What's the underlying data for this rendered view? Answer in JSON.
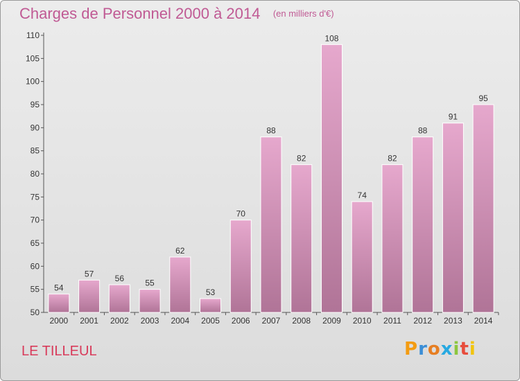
{
  "header": {
    "title": "Charges de Personnel 2000 à 2014",
    "unit": "(en milliers d'€)"
  },
  "footer": {
    "commune": "LE TILLEUL",
    "logo_text": "Proxiti"
  },
  "colors": {
    "bar_top": "#e6a8cd",
    "bar_bottom": "#b07497",
    "title": "#c05a94",
    "commune": "#d83a5a"
  },
  "chart_data": {
    "type": "bar",
    "title": "Charges de Personnel 2000 à 2014",
    "subtitle": "(en milliers d'€)",
    "categories": [
      "2000",
      "2001",
      "2002",
      "2003",
      "2004",
      "2005",
      "2006",
      "2007",
      "2008",
      "2009",
      "2010",
      "2011",
      "2012",
      "2013",
      "2014"
    ],
    "values": [
      54,
      57,
      56,
      55,
      62,
      53,
      70,
      88,
      82,
      108,
      74,
      82,
      88,
      91,
      95
    ],
    "xlabel": "",
    "ylabel": "",
    "ylim": [
      50,
      110
    ],
    "yticks": [
      50,
      55,
      60,
      65,
      70,
      75,
      80,
      85,
      90,
      95,
      100,
      105,
      110
    ],
    "grid": false,
    "legend": "none"
  }
}
